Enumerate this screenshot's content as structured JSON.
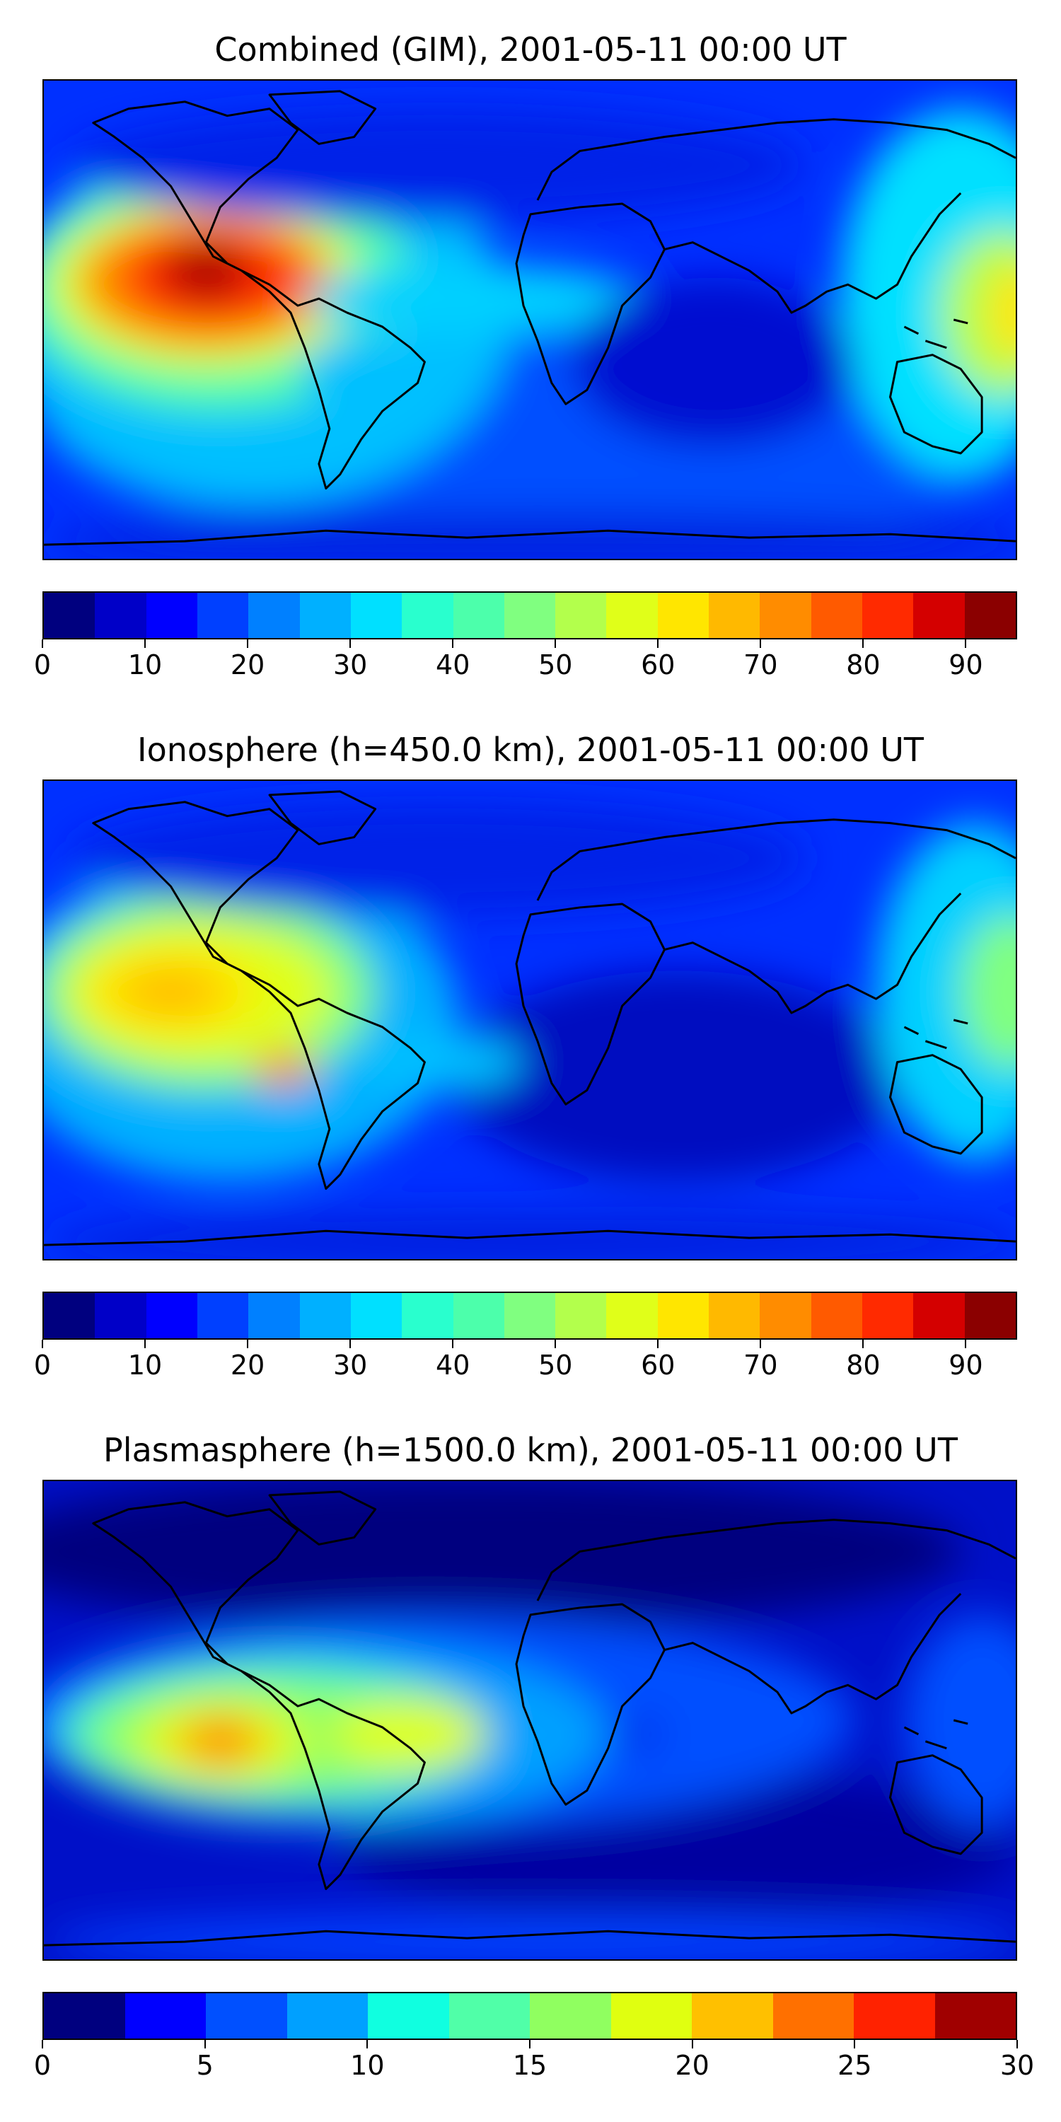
{
  "panels": [
    {
      "title": "Combined (GIM), 2001-05-11 00:00 UT",
      "colorbar": {
        "colors": [
          "#00007f",
          "#0000c8",
          "#0000ff",
          "#0040ff",
          "#0080ff",
          "#00b0ff",
          "#00e0ff",
          "#29ffce",
          "#4cffab",
          "#80ff80",
          "#b3ff4c",
          "#e0ff19",
          "#ffe600",
          "#ffb900",
          "#ff8c00",
          "#ff5a00",
          "#ff2a00",
          "#d40000",
          "#8b0000"
        ],
        "ticks": [
          "0",
          "10",
          "20",
          "30",
          "40",
          "50",
          "60",
          "70",
          "80",
          "90"
        ],
        "tick_values": [
          0,
          10,
          20,
          30,
          40,
          50,
          60,
          70,
          80,
          90
        ],
        "range": [
          0,
          95
        ]
      }
    },
    {
      "title": "Ionosphere  (h=450.0 km), 2001-05-11 00:00 UT",
      "colorbar": {
        "colors": [
          "#00007f",
          "#0000c8",
          "#0000ff",
          "#0040ff",
          "#0080ff",
          "#00b0ff",
          "#00e0ff",
          "#29ffce",
          "#4cffab",
          "#80ff80",
          "#b3ff4c",
          "#e0ff19",
          "#ffe600",
          "#ffb900",
          "#ff8c00",
          "#ff5a00",
          "#ff2a00",
          "#d40000",
          "#8b0000"
        ],
        "ticks": [
          "0",
          "10",
          "20",
          "30",
          "40",
          "50",
          "60",
          "70",
          "80",
          "90"
        ],
        "tick_values": [
          0,
          10,
          20,
          30,
          40,
          50,
          60,
          70,
          80,
          90
        ],
        "range": [
          0,
          95
        ]
      }
    },
    {
      "title": "Plasmasphere (h=1500.0 km), 2001-05-11 00:00 UT",
      "colorbar": {
        "colors": [
          "#00007f",
          "#0000ff",
          "#0050ff",
          "#00a0ff",
          "#10ffe0",
          "#50ffa8",
          "#90ff60",
          "#e0ff10",
          "#ffc000",
          "#ff7000",
          "#ff2200",
          "#a00000"
        ],
        "ticks": [
          "0",
          "5",
          "10",
          "15",
          "20",
          "25",
          "30"
        ],
        "tick_values": [
          0,
          5,
          10,
          15,
          20,
          25,
          30
        ],
        "range": [
          0,
          30
        ]
      }
    }
  ]
}
